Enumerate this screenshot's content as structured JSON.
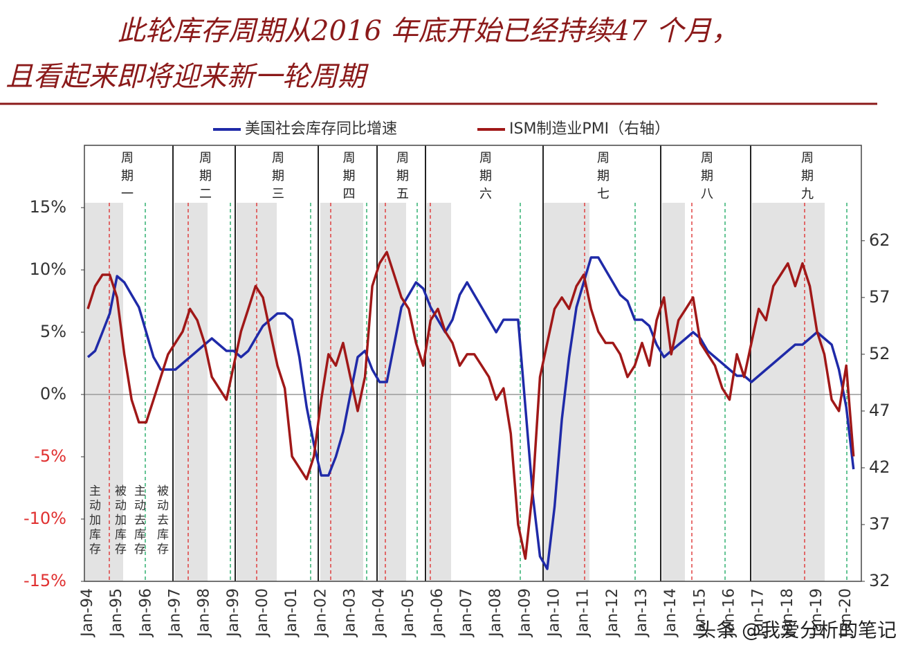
{
  "header": {
    "title_line1": "此轮库存周期从2016 年底开始已经持续47 个月，",
    "title_line2": "且看起来即将迎来新一轮周期"
  },
  "chart_data": {
    "type": "line",
    "categories": [
      "Jan-94",
      null,
      null,
      null,
      "Jan-95",
      null,
      null,
      null,
      "Jan-96",
      null,
      null,
      null,
      "Jan-97",
      null,
      null,
      null,
      "Jan-98",
      null,
      null,
      null,
      "Jan-99",
      null,
      null,
      null,
      "Jan-00",
      null,
      null,
      null,
      "Jan-01",
      null,
      null,
      null,
      "Jan-02",
      null,
      null,
      null,
      "Jan-03",
      null,
      null,
      null,
      "Jan-04",
      null,
      null,
      null,
      "Jan-05",
      null,
      null,
      null,
      "Jan-06",
      null,
      null,
      null,
      "Jan-07",
      null,
      null,
      null,
      "Jan-08",
      null,
      null,
      null,
      "Jan-09",
      null,
      null,
      null,
      "Jan-10",
      null,
      null,
      null,
      "Jan-11",
      null,
      null,
      null,
      "Jan-12",
      null,
      null,
      null,
      "Jan-13",
      null,
      null,
      null,
      "Jan-14",
      null,
      null,
      null,
      "Jan-15",
      null,
      null,
      null,
      "Jan-16",
      null,
      null,
      null,
      "Jan-17",
      null,
      null,
      null,
      "Jan-18",
      null,
      null,
      null,
      "Jan-19",
      null,
      null,
      null,
      "Jan-20",
      null
    ],
    "series": [
      {
        "name": "美国社会库存同比增速",
        "color": "#1f2aa8",
        "values": [
          3,
          3.5,
          5,
          6.5,
          9.5,
          9,
          8,
          7,
          5,
          3,
          2,
          2,
          2,
          2.5,
          3,
          3.5,
          4,
          4.5,
          4,
          3.5,
          3.5,
          3,
          3.5,
          4.5,
          5.5,
          6,
          6.5,
          6.5,
          6,
          3,
          -1,
          -4,
          -6.5,
          -6.5,
          -5,
          -3,
          0,
          3,
          3.5,
          2,
          1,
          1,
          4,
          7,
          8,
          9,
          8.5,
          7,
          6,
          5,
          6,
          8,
          9,
          8,
          7,
          6,
          5,
          6,
          6,
          6,
          -1,
          -8,
          -13,
          -14,
          -9,
          -2,
          3,
          7,
          9,
          11,
          11,
          10,
          9,
          8,
          7.5,
          6,
          6,
          5.5,
          4,
          3,
          3.5,
          4,
          4.5,
          5,
          4.5,
          3.5,
          3,
          2.5,
          2,
          1.5,
          1.5,
          1,
          1.5,
          2,
          2.5,
          3,
          3.5,
          4,
          4,
          4.5,
          5,
          4.5,
          4,
          2,
          -1,
          -6
        ]
      },
      {
        "name": "ISM制造业PMI（右轴）",
        "color": "#a01818",
        "axis": "y2",
        "values": [
          56,
          58,
          59,
          59,
          57,
          52,
          48,
          46,
          46,
          48,
          50,
          52,
          53,
          54,
          56,
          55,
          53,
          50,
          49,
          48,
          51,
          54,
          56,
          58,
          57,
          54,
          51,
          49,
          43,
          42,
          41,
          43,
          48,
          52,
          51,
          53,
          50,
          47,
          50,
          58,
          60,
          61,
          59,
          57,
          56,
          53,
          51,
          55,
          56,
          54,
          53,
          51,
          52,
          52,
          51,
          50,
          48,
          49,
          45,
          37,
          34,
          40,
          50,
          53,
          56,
          57,
          56,
          58,
          59,
          56,
          54,
          53,
          53,
          52,
          50,
          51,
          53,
          51,
          55,
          57,
          52,
          55,
          56,
          57,
          53,
          52,
          51,
          49,
          48,
          52,
          50,
          53,
          56,
          55,
          58,
          59,
          60,
          58,
          60,
          58,
          54,
          52,
          48,
          47,
          51,
          43
        ]
      }
    ],
    "ylim": [
      -15,
      20
    ],
    "yticks": [
      {
        "value": -15,
        "label": "-15%"
      },
      {
        "value": -10,
        "label": "-10%"
      },
      {
        "value": -5,
        "label": "-5%"
      },
      {
        "value": 0,
        "label": "0%"
      },
      {
        "value": 5,
        "label": "5%"
      },
      {
        "value": 10,
        "label": "10%"
      },
      {
        "value": 15,
        "label": "15%"
      }
    ],
    "y2lim": [
      32,
      70.4
    ],
    "y2ticks": [
      32,
      37,
      42,
      47,
      52,
      57,
      62
    ],
    "cycles": [
      "周期一",
      "周期二",
      "周期三",
      "周期四",
      "周期五",
      "周期六",
      "周期七",
      "周期八",
      "周期九"
    ],
    "phases": [
      "主动加库存",
      "被动加库存",
      "主动去库存",
      "被动去库存"
    ]
  },
  "watermark": "头条 @我爱分析的笔记"
}
